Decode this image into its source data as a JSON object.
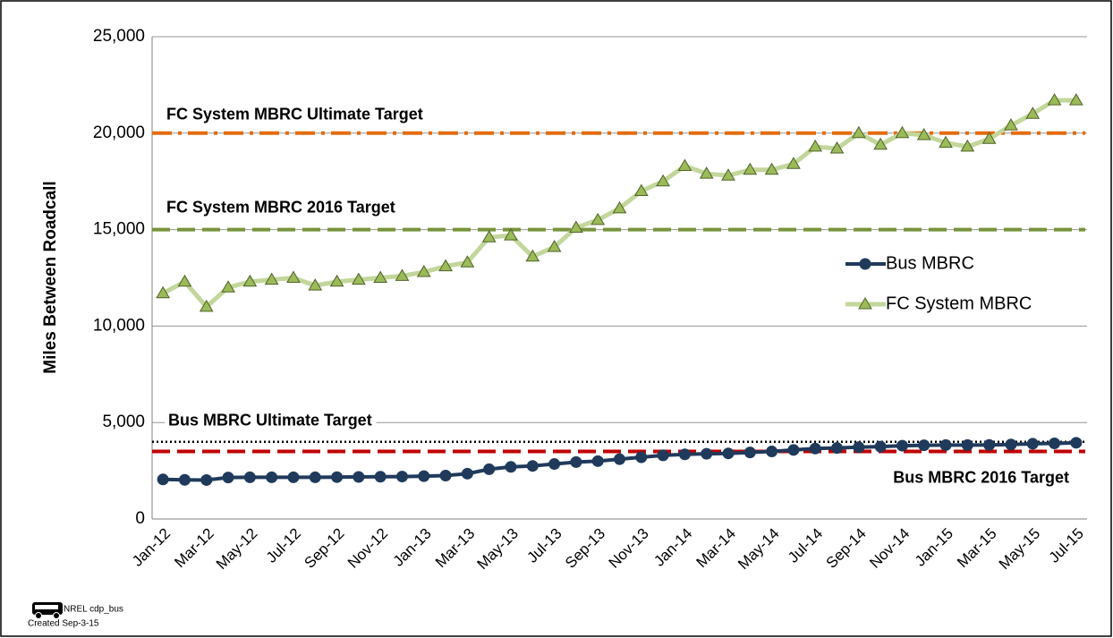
{
  "chart_data": {
    "type": "line",
    "y_label": "Miles Between Roadcall",
    "categories": [
      "Jan-12",
      null,
      "Mar-12",
      null,
      "May-12",
      null,
      "Jul-12",
      null,
      "Sep-12",
      null,
      "Nov-12",
      null,
      "Jan-13",
      null,
      "Mar-13",
      null,
      "May-13",
      null,
      "Jul-13",
      null,
      "Sep-13",
      null,
      "Nov-13",
      null,
      "Jan-14",
      null,
      "Mar-14",
      null,
      "May-14",
      null,
      "Jul-14",
      null,
      "Sep-14",
      null,
      "Nov-14",
      null,
      "Jan-15",
      null,
      "Mar-15",
      null,
      "May-15",
      null,
      "Jul-15"
    ],
    "series": [
      {
        "name": "Bus MBRC",
        "color": "#203a5c",
        "marker": "circle",
        "values": [
          2050,
          2030,
          2020,
          2150,
          2160,
          2160,
          2160,
          2160,
          2170,
          2180,
          2190,
          2200,
          2220,
          2250,
          2350,
          2580,
          2700,
          2750,
          2850,
          2950,
          3000,
          3100,
          3200,
          3300,
          3350,
          3380,
          3400,
          3450,
          3500,
          3580,
          3650,
          3680,
          3720,
          3750,
          3800,
          3820,
          3830,
          3830,
          3840,
          3860,
          3900,
          3920,
          3950
        ]
      },
      {
        "name": "FC System MBRC",
        "color": "#c3d69b",
        "marker": "triangle",
        "values": [
          11700,
          12300,
          11000,
          12000,
          12300,
          12400,
          12500,
          12100,
          12300,
          12400,
          12500,
          12600,
          12800,
          13100,
          13300,
          14600,
          14700,
          13600,
          14100,
          15100,
          15500,
          16100,
          17000,
          17500,
          18300,
          17900,
          17800,
          18100,
          18100,
          18400,
          19300,
          19200,
          20000,
          19400,
          20000,
          19900,
          19500,
          19300,
          19700,
          20400,
          21000,
          21700,
          21700
        ]
      }
    ],
    "reference_lines": [
      {
        "label": "FC System MBRC Ultimate Target",
        "value": 20000,
        "color": "#e46c0a",
        "style": "dash-dot"
      },
      {
        "label": "FC System MBRC 2016 Target",
        "value": 15000,
        "color": "#77933c",
        "style": "dashed"
      },
      {
        "label": "Bus MBRC Ultimate Target",
        "value": 4000,
        "color": "#000000",
        "style": "dotted"
      },
      {
        "label": "Bus MBRC 2016 Target",
        "value": 3500,
        "color": "#c00000",
        "style": "dashed"
      }
    ],
    "ylim": [
      0,
      25000
    ],
    "yticks": [
      {
        "value": 0,
        "label": "0"
      },
      {
        "value": 5000,
        "label": "5,000"
      },
      {
        "value": 10000,
        "label": "10,000"
      },
      {
        "value": 15000,
        "label": "15,000"
      },
      {
        "value": 20000,
        "label": "20,000"
      },
      {
        "value": 25000,
        "label": "25,000"
      }
    ],
    "grid": true,
    "legend": "right",
    "footnote": [
      "NREL cdp_bus",
      "Created Sep-3-15"
    ]
  }
}
